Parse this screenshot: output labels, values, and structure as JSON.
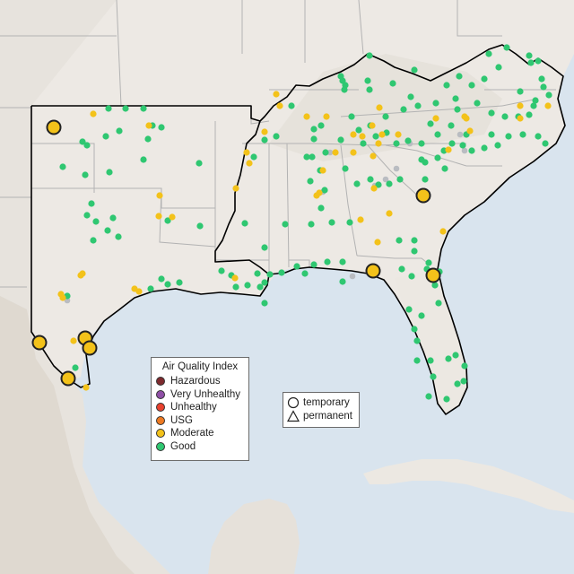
{
  "legend": {
    "title": "Air Quality Index",
    "items": [
      {
        "label": "Hazardous",
        "color": "#7e2a2e"
      },
      {
        "label": "Very Unhealthy",
        "color": "#8f4fa6"
      },
      {
        "label": "Unhealthy",
        "color": "#e8412e"
      },
      {
        "label": "USG",
        "color": "#ee7a22"
      },
      {
        "label": "Moderate",
        "color": "#f3c21a"
      },
      {
        "label": "Good",
        "color": "#2fc771"
      }
    ]
  },
  "shape_legend": {
    "items": [
      {
        "label": "temporary",
        "icon": "circle-icon"
      },
      {
        "label": "permanent",
        "icon": "triangle-icon"
      }
    ]
  },
  "colors": {
    "water": "#d9e4ee",
    "land": "#ede9e4",
    "terrain": "#ddd7cf",
    "good": "#2fc771",
    "moderate": "#f3c21a",
    "gray_station": "#b9bcc1"
  }
}
